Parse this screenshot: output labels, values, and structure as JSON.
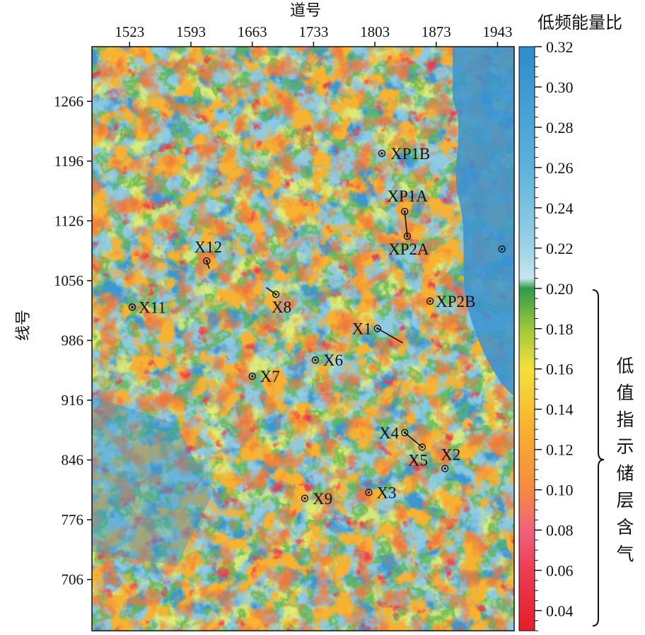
{
  "map": {
    "top_axis_title": "道号",
    "left_axis_title": "线号",
    "trace_ticks": [
      "1523",
      "1593",
      "1663",
      "1733",
      "1803",
      "1873",
      "1943"
    ],
    "line_ticks": [
      "1266",
      "1196",
      "1126",
      "1056",
      "986",
      "916",
      "846",
      "776",
      "706"
    ],
    "trace_range": [
      1480,
      1962
    ],
    "line_range": [
      646,
      1330
    ]
  },
  "colorbar": {
    "title": "低频能量比",
    "ticks": [
      "0.32",
      "0.30",
      "0.28",
      "0.26",
      "0.24",
      "0.22",
      "0.20",
      "0.18",
      "0.16",
      "0.14",
      "0.12",
      "0.10",
      "0.08",
      "0.06",
      "0.04"
    ],
    "value_range": [
      0.03,
      0.32
    ],
    "stops": [
      {
        "v": 0.03,
        "c": "#e41e2a"
      },
      {
        "v": 0.06,
        "c": "#ee3b52"
      },
      {
        "v": 0.08,
        "c": "#f0627a"
      },
      {
        "v": 0.1,
        "c": "#f68a40"
      },
      {
        "v": 0.13,
        "c": "#f7b02e"
      },
      {
        "v": 0.16,
        "c": "#f4e03a"
      },
      {
        "v": 0.18,
        "c": "#9cc83c"
      },
      {
        "v": 0.2,
        "c": "#2f9a48"
      },
      {
        "v": 0.205,
        "c": "#c6e6ef"
      },
      {
        "v": 0.22,
        "c": "#9dd3e6"
      },
      {
        "v": 0.26,
        "c": "#5cb2dc"
      },
      {
        "v": 0.32,
        "c": "#2f8ccb"
      }
    ],
    "bracket_text": "低值指示储层含气"
  },
  "wells": [
    {
      "name": "XP1B",
      "trace": 1811,
      "line": 1205
    },
    {
      "name": "XP1A",
      "trace": 1837,
      "line": 1137
    },
    {
      "name": "XP2A",
      "trace": 1840,
      "line": 1108
    },
    {
      "name": "XP2B",
      "trace": 1866,
      "line": 1032
    },
    {
      "name": "X1",
      "trace": 1806,
      "line": 1000
    },
    {
      "name": "X12",
      "trace": 1611,
      "line": 1079
    },
    {
      "name": "X11",
      "trace": 1526,
      "line": 1025
    },
    {
      "name": "X8",
      "trace": 1690,
      "line": 1040
    },
    {
      "name": "X6",
      "trace": 1735,
      "line": 963
    },
    {
      "name": "X7",
      "trace": 1663,
      "line": 944
    },
    {
      "name": "X4",
      "trace": 1837,
      "line": 878
    },
    {
      "name": "X5",
      "trace": 1857,
      "line": 861
    },
    {
      "name": "X2",
      "trace": 1883,
      "line": 836
    },
    {
      "name": "X3",
      "trace": 1796,
      "line": 808
    },
    {
      "name": "X9",
      "trace": 1723,
      "line": 801
    }
  ],
  "unlabeled_wells": [
    {
      "trace": 1948,
      "line": 1093
    }
  ]
}
